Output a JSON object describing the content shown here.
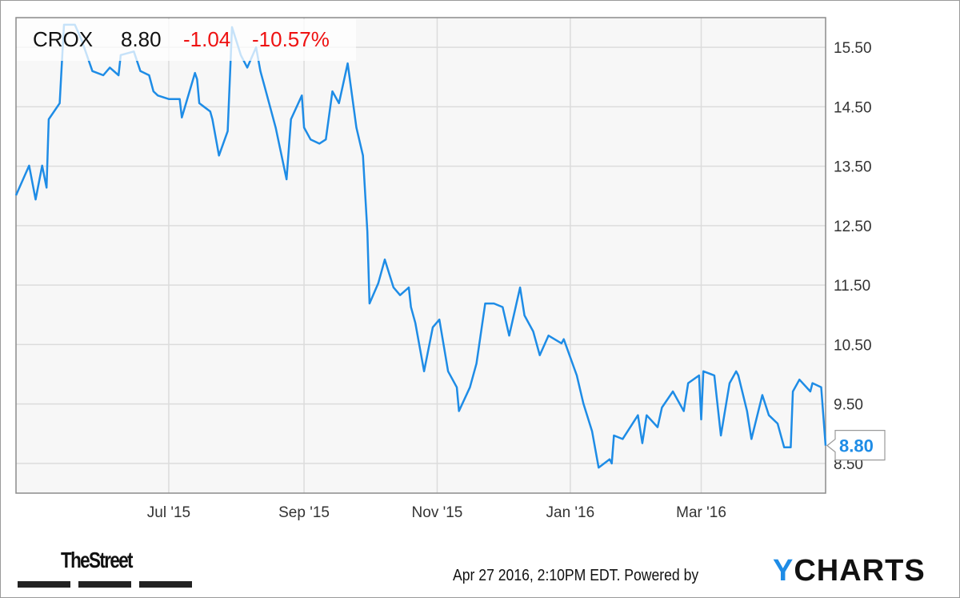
{
  "header": {
    "ticker": "CROX",
    "price": "8.80",
    "change": "-1.04",
    "change_pct": "-10.57%"
  },
  "footer": {
    "timestamp": "Apr 27 2016, 2:10PM EDT. Powered by",
    "brand_y": "Y",
    "brand_rest": "CHARTS",
    "publisher": "TheStreet"
  },
  "colors": {
    "line": "#1e8ce6",
    "negative": "#ee1111",
    "grid": "#dcdcdc",
    "plot_bg": "#f7f7f7"
  },
  "chart_data": {
    "type": "line",
    "title": "",
    "xlabel": "",
    "ylabel": "",
    "grid": true,
    "y_axis_side": "right",
    "xlim": [
      "2015-04-22",
      "2016-04-27"
    ],
    "ylim": [
      8.0,
      16.0
    ],
    "yticks": [
      "8.50",
      "9.50",
      "10.50",
      "11.50",
      "12.50",
      "13.50",
      "14.50",
      "15.50"
    ],
    "xticks": [
      {
        "date": "2015-07-01",
        "label": "Jul '15"
      },
      {
        "date": "2015-09-01",
        "label": "Sep '15"
      },
      {
        "date": "2015-11-01",
        "label": "Nov '15"
      },
      {
        "date": "2016-01-01",
        "label": "Jan '16"
      },
      {
        "date": "2016-03-01",
        "label": "Mar '16"
      }
    ],
    "last_value_label": "8.80",
    "series": [
      {
        "points": [
          [
            "2015-04-22",
            13.01
          ],
          [
            "2015-04-28",
            13.51
          ],
          [
            "2015-05-01",
            12.94
          ],
          [
            "2015-05-04",
            13.51
          ],
          [
            "2015-05-06",
            13.14
          ],
          [
            "2015-05-07",
            14.29
          ],
          [
            "2015-05-12",
            14.56
          ],
          [
            "2015-05-13",
            15.23
          ],
          [
            "2015-05-14",
            15.88
          ],
          [
            "2015-05-19",
            15.88
          ],
          [
            "2015-05-22",
            15.63
          ],
          [
            "2015-05-27",
            15.1
          ],
          [
            "2015-06-01",
            15.03
          ],
          [
            "2015-06-04",
            15.16
          ],
          [
            "2015-06-08",
            15.03
          ],
          [
            "2015-06-09",
            15.37
          ],
          [
            "2015-06-15",
            15.43
          ],
          [
            "2015-06-18",
            15.1
          ],
          [
            "2015-06-22",
            15.03
          ],
          [
            "2015-06-24",
            14.76
          ],
          [
            "2015-06-26",
            14.69
          ],
          [
            "2015-07-01",
            14.63
          ],
          [
            "2015-07-06",
            14.63
          ],
          [
            "2015-07-07",
            14.32
          ],
          [
            "2015-07-13",
            15.07
          ],
          [
            "2015-07-14",
            14.96
          ],
          [
            "2015-07-15",
            14.56
          ],
          [
            "2015-07-20",
            14.42
          ],
          [
            "2015-07-21",
            14.29
          ],
          [
            "2015-07-24",
            13.68
          ],
          [
            "2015-07-28",
            14.09
          ],
          [
            "2015-07-30",
            15.84
          ],
          [
            "2015-08-03",
            15.37
          ],
          [
            "2015-08-06",
            15.16
          ],
          [
            "2015-08-10",
            15.5
          ],
          [
            "2015-08-12",
            15.1
          ],
          [
            "2015-08-14",
            14.83
          ],
          [
            "2015-08-19",
            14.15
          ],
          [
            "2015-08-24",
            13.28
          ],
          [
            "2015-08-26",
            14.29
          ],
          [
            "2015-08-31",
            14.69
          ],
          [
            "2015-09-01",
            14.15
          ],
          [
            "2015-09-04",
            13.95
          ],
          [
            "2015-09-08",
            13.88
          ],
          [
            "2015-09-11",
            13.95
          ],
          [
            "2015-09-14",
            14.76
          ],
          [
            "2015-09-17",
            14.56
          ],
          [
            "2015-09-21",
            15.23
          ],
          [
            "2015-09-25",
            14.15
          ],
          [
            "2015-09-28",
            13.68
          ],
          [
            "2015-09-30",
            12.4
          ],
          [
            "2015-10-01",
            11.19
          ],
          [
            "2015-10-05",
            11.53
          ],
          [
            "2015-10-08",
            11.93
          ],
          [
            "2015-10-12",
            11.46
          ],
          [
            "2015-10-15",
            11.33
          ],
          [
            "2015-10-19",
            11.46
          ],
          [
            "2015-10-20",
            11.13
          ],
          [
            "2015-10-22",
            10.86
          ],
          [
            "2015-10-26",
            10.05
          ],
          [
            "2015-10-30",
            10.79
          ],
          [
            "2015-11-02",
            10.92
          ],
          [
            "2015-11-06",
            10.05
          ],
          [
            "2015-11-10",
            9.78
          ],
          [
            "2015-11-11",
            9.38
          ],
          [
            "2015-11-16",
            9.78
          ],
          [
            "2015-11-19",
            10.18
          ],
          [
            "2015-11-23",
            11.19
          ],
          [
            "2015-11-27",
            11.19
          ],
          [
            "2015-12-01",
            11.13
          ],
          [
            "2015-12-04",
            10.65
          ],
          [
            "2015-12-09",
            11.46
          ],
          [
            "2015-12-11",
            10.99
          ],
          [
            "2015-12-15",
            10.72
          ],
          [
            "2015-12-18",
            10.32
          ],
          [
            "2015-12-22",
            10.65
          ],
          [
            "2015-12-28",
            10.52
          ],
          [
            "2015-12-29",
            10.59
          ],
          [
            "2016-01-04",
            9.98
          ],
          [
            "2016-01-07",
            9.51
          ],
          [
            "2016-01-11",
            9.04
          ],
          [
            "2016-01-14",
            8.43
          ],
          [
            "2016-01-19",
            8.57
          ],
          [
            "2016-01-20",
            8.5
          ],
          [
            "2016-01-21",
            8.97
          ],
          [
            "2016-01-25",
            8.91
          ],
          [
            "2016-02-01",
            9.31
          ],
          [
            "2016-02-03",
            8.84
          ],
          [
            "2016-02-05",
            9.31
          ],
          [
            "2016-02-10",
            9.11
          ],
          [
            "2016-02-12",
            9.44
          ],
          [
            "2016-02-17",
            9.71
          ],
          [
            "2016-02-22",
            9.38
          ],
          [
            "2016-02-24",
            9.85
          ],
          [
            "2016-02-29",
            9.98
          ],
          [
            "2016-03-01",
            9.24
          ],
          [
            "2016-03-02",
            10.05
          ],
          [
            "2016-03-07",
            9.98
          ],
          [
            "2016-03-10",
            8.97
          ],
          [
            "2016-03-14",
            9.85
          ],
          [
            "2016-03-17",
            10.05
          ],
          [
            "2016-03-18",
            9.98
          ],
          [
            "2016-03-22",
            9.38
          ],
          [
            "2016-03-24",
            8.91
          ],
          [
            "2016-03-29",
            9.65
          ],
          [
            "2016-04-01",
            9.31
          ],
          [
            "2016-04-05",
            9.17
          ],
          [
            "2016-04-08",
            8.77
          ],
          [
            "2016-04-11",
            8.77
          ],
          [
            "2016-04-12",
            9.71
          ],
          [
            "2016-04-15",
            9.91
          ],
          [
            "2016-04-20",
            9.71
          ],
          [
            "2016-04-21",
            9.85
          ],
          [
            "2016-04-25",
            9.78
          ],
          [
            "2016-04-27",
            8.8
          ]
        ]
      }
    ]
  }
}
